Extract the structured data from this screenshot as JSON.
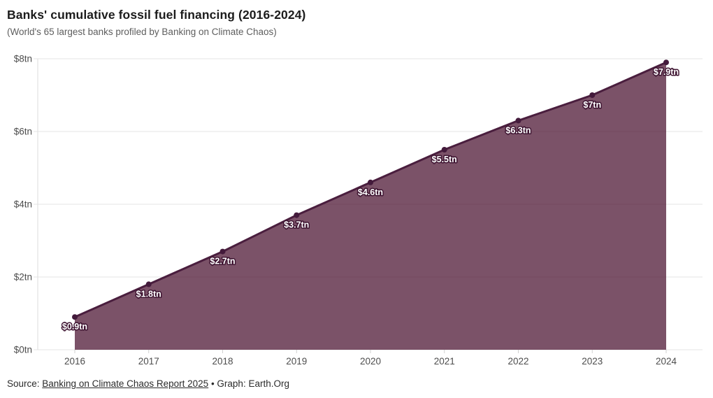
{
  "header": {
    "title": "Banks' cumulative fossil fuel financing (2016-2024)",
    "subtitle": "(World's 65 largest banks profiled by Banking on Climate Chaos)"
  },
  "chart_data": {
    "type": "area",
    "title": "Banks' cumulative fossil fuel financing (2016-2024)",
    "subtitle": "(World's 65 largest banks profiled by Banking on Climate Chaos)",
    "x": [
      2016,
      2017,
      2018,
      2019,
      2020,
      2021,
      2022,
      2023,
      2024
    ],
    "values": [
      0.9,
      1.8,
      2.7,
      3.7,
      4.6,
      5.5,
      6.3,
      7.0,
      7.9
    ],
    "point_labels": [
      "$0.9tn",
      "$1.8tn",
      "$2.7tn",
      "$3.7tn",
      "$4.6tn",
      "$5.5tn",
      "$6.3tn",
      "$7tn",
      "$7.9tn"
    ],
    "unit": "trillion USD",
    "xlabel": "",
    "ylabel": "",
    "ylim": [
      0,
      8
    ],
    "ytick_values": [
      0,
      2,
      4,
      6,
      8
    ],
    "ytick_labels": [
      "$0tn",
      "$2tn",
      "$4tn",
      "$6tn",
      "$8tn"
    ],
    "grid": true,
    "legend": false,
    "colors": {
      "line": "#4a1e3e",
      "fill": "rgba(74,18,48,0.73)",
      "dot": "#431a3b",
      "grid": "#e4e4e4",
      "axis": "#dedede",
      "tick": "#d0d0d0",
      "label_text": "#ffffff",
      "label_halo": "#3e1431"
    }
  },
  "footer": {
    "source_prefix": "Source: ",
    "source_link": "Banking on Climate Chaos Report 2025",
    "separator": " • ",
    "graph_credit": "Graph: Earth.Org"
  }
}
